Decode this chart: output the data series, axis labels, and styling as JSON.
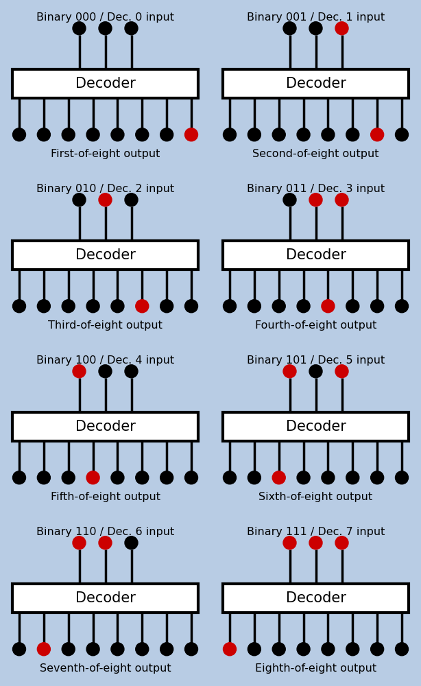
{
  "panels": [
    {
      "title": "Binary 000 / Dec. 0 input",
      "subtitle": "First-of-eight output",
      "input_bits": [
        0,
        0,
        0
      ],
      "active_output": 0
    },
    {
      "title": "Binary 001 / Dec. 1 input",
      "subtitle": "Second-of-eight output",
      "input_bits": [
        0,
        0,
        1
      ],
      "active_output": 1
    },
    {
      "title": "Binary 010 / Dec. 2 input",
      "subtitle": "Third-of-eight output",
      "input_bits": [
        0,
        1,
        0
      ],
      "active_output": 2
    },
    {
      "title": "Binary 011 / Dec. 3 input",
      "subtitle": "Fourth-of-eight output",
      "input_bits": [
        0,
        1,
        1
      ],
      "active_output": 3
    },
    {
      "title": "Binary 100 / Dec. 4 input",
      "subtitle": "Fifth-of-eight output",
      "input_bits": [
        1,
        0,
        0
      ],
      "active_output": 4
    },
    {
      "title": "Binary 101 / Dec. 5 input",
      "subtitle": "Sixth-of-eight output",
      "input_bits": [
        1,
        0,
        1
      ],
      "active_output": 5
    },
    {
      "title": "Binary 110 / Dec. 6 input",
      "subtitle": "Seventh-of-eight output",
      "input_bits": [
        1,
        1,
        0
      ],
      "active_output": 6
    },
    {
      "title": "Binary 111 / Dec. 7 input",
      "subtitle": "Eighth-of-eight output",
      "input_bits": [
        1,
        1,
        1
      ],
      "active_output": 7
    }
  ],
  "bg_color": "#b8cce4",
  "panel_bg_color": "#b8cce4",
  "box_color": "#ffffff",
  "box_edge_color": "#000000",
  "pin_color_off": "#000000",
  "pin_color_on": "#cc0000",
  "title_fontsize": 11.5,
  "label_fontsize": 11.5,
  "decoder_fontsize": 15,
  "line_width": 2.5,
  "num_inputs": 3,
  "num_outputs": 8,
  "fig_width": 6.14,
  "fig_height": 10.0,
  "dpi": 100
}
